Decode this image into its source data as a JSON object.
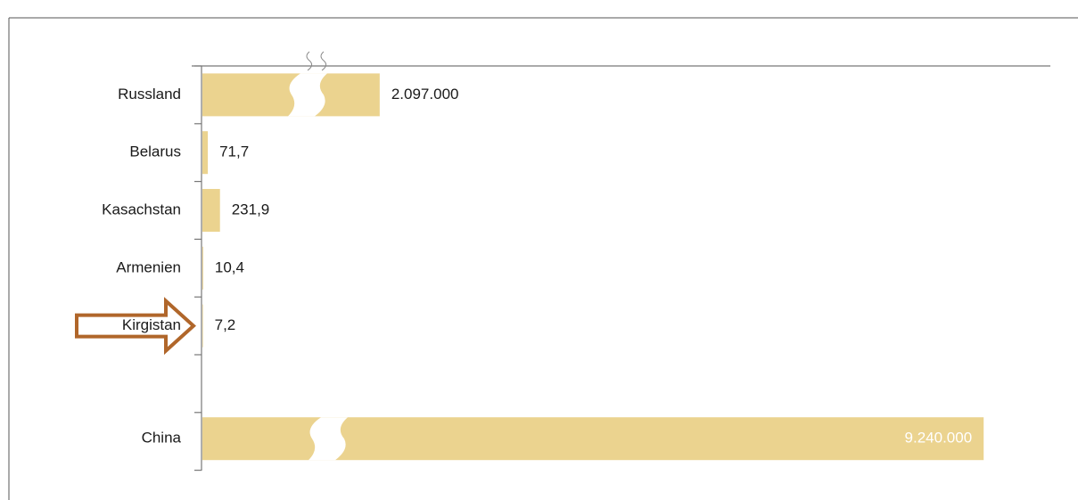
{
  "chart_data": {
    "type": "bar",
    "orientation": "horizontal",
    "broken_axis": true,
    "categories": [
      "Russland",
      "Belarus",
      "Kasachstan",
      "Armenien",
      "Kirgistan",
      null,
      "China"
    ],
    "values": [
      2097000,
      71.7,
      231.9,
      10.4,
      7.2,
      null,
      9240000
    ],
    "value_labels": [
      "2.097.000",
      "71,7",
      "231,9",
      "10,4",
      "7,2",
      null,
      "9.240.000"
    ],
    "color": "#ebd38f",
    "highlight": "Kirgistan",
    "highlight_color": "#b0662a"
  }
}
